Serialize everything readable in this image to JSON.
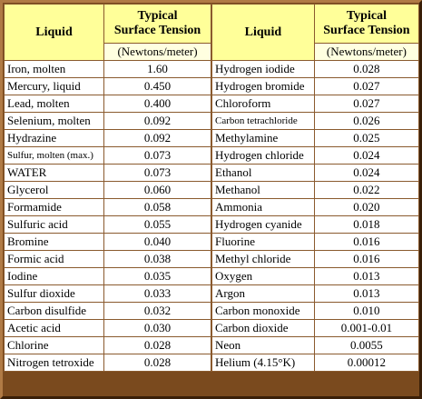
{
  "headers": {
    "liquid": "Liquid",
    "tension_line1": "Typical",
    "tension_line2": "Surface Tension",
    "units": "(Newtons/meter)"
  },
  "left_rows": [
    {
      "liquid": "Iron, molten",
      "value": "1.60"
    },
    {
      "liquid": "Mercury, liquid",
      "value": "0.450"
    },
    {
      "liquid": "Lead, molten",
      "value": "0.400"
    },
    {
      "liquid": "Selenium, molten",
      "value": "0.092"
    },
    {
      "liquid": "Hydrazine",
      "value": "0.092"
    },
    {
      "liquid": "Sulfur, molten (max.)",
      "value": "0.073"
    },
    {
      "liquid": "WATER",
      "value": "0.073"
    },
    {
      "liquid": "Glycerol",
      "value": "0.060"
    },
    {
      "liquid": "Formamide",
      "value": "0.058"
    },
    {
      "liquid": "Sulfuric acid",
      "value": "0.055"
    },
    {
      "liquid": "Bromine",
      "value": "0.040"
    },
    {
      "liquid": "Formic acid",
      "value": "0.038"
    },
    {
      "liquid": "Iodine",
      "value": "0.035"
    },
    {
      "liquid": "Sulfur dioxide",
      "value": "0.033"
    },
    {
      "liquid": "Carbon disulfide",
      "value": "0.032"
    },
    {
      "liquid": "Acetic acid",
      "value": "0.030"
    },
    {
      "liquid": "Chlorine",
      "value": "0.028"
    },
    {
      "liquid": "Nitrogen tetroxide",
      "value": "0.028"
    }
  ],
  "right_rows": [
    {
      "liquid": "Hydrogen iodide",
      "value": "0.028"
    },
    {
      "liquid": "Hydrogen bromide",
      "value": "0.027"
    },
    {
      "liquid": "Chloroform",
      "value": "0.027"
    },
    {
      "liquid": "Carbon tetrachloride",
      "value": "0.026"
    },
    {
      "liquid": "Methylamine",
      "value": "0.025"
    },
    {
      "liquid": "Hydrogen chloride",
      "value": "0.024"
    },
    {
      "liquid": "Ethanol",
      "value": "0.024"
    },
    {
      "liquid": "Methanol",
      "value": "0.022"
    },
    {
      "liquid": "Ammonia",
      "value": "0.020"
    },
    {
      "liquid": "Hydrogen cyanide",
      "value": "0.018"
    },
    {
      "liquid": "Fluorine",
      "value": "0.016"
    },
    {
      "liquid": "Methyl chloride",
      "value": "0.016"
    },
    {
      "liquid": "Oxygen",
      "value": "0.013"
    },
    {
      "liquid": "Argon",
      "value": "0.013"
    },
    {
      "liquid": "Carbon monoxide",
      "value": "0.010"
    },
    {
      "liquid": "Carbon dioxide",
      "value": "0.001-0.01"
    },
    {
      "liquid": "Neon",
      "value": "0.0055"
    },
    {
      "liquid": "Helium (4.15°K)",
      "value": "0.00012"
    }
  ],
  "colors": {
    "header_bg": "#ffff99",
    "frame": "#7a4a1e",
    "grid": "#8a5a2e"
  }
}
